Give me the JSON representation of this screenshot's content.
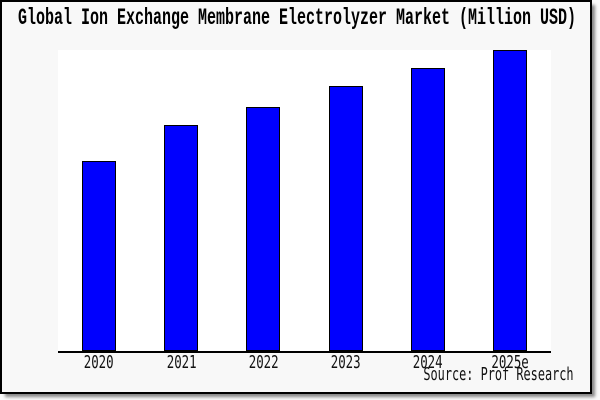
{
  "panel": {
    "background": "#f8f8f8",
    "border_color": "#000000",
    "plot_background": "#ffffff"
  },
  "chart_data": {
    "type": "bar",
    "title": "Global Ion Exchange Membrane Electrolyzer Market (Million USD)",
    "categories": [
      "2020",
      "2021",
      "2022",
      "2023",
      "2024",
      "2025e"
    ],
    "values": [
      63,
      75,
      81,
      88,
      94,
      100
    ],
    "values_note": "no y-axis labels shown in chart; values are relative bar heights with tallest bar (2025e) = 100",
    "xlabel": "",
    "ylabel": "",
    "ylim": [
      0,
      100
    ],
    "grid": false,
    "legend": false,
    "bar_color": "#0000fe",
    "bar_border_color": "#000000",
    "source": "Source: Prof Research"
  }
}
